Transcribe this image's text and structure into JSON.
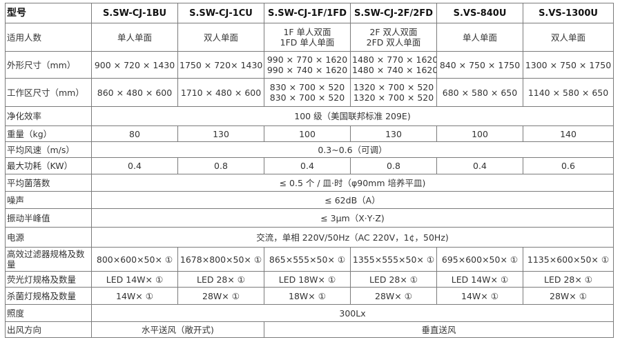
{
  "table": {
    "header": {
      "label": "型号",
      "models": [
        "S.SW-CJ-1BU",
        "S.SW-CJ-1CU",
        "S.SW-CJ-1F/1FD",
        "S.SW-CJ-2F/2FD",
        "S.VS-840U",
        "S.VS-1300U"
      ]
    },
    "rows": [
      {
        "label": "适用人数",
        "cells": [
          {
            "lines": [
              "单人单面"
            ]
          },
          {
            "lines": [
              "双人单面"
            ]
          },
          {
            "lines": [
              "1F 单人双面",
              "1FD 单人单面"
            ]
          },
          {
            "lines": [
              "2F 双人双面",
              "2FD 双人单面"
            ]
          },
          {
            "lines": [
              "单人单面"
            ]
          },
          {
            "lines": [
              "双人单面"
            ]
          }
        ]
      },
      {
        "label": "外形尺寸（mm）",
        "cells": [
          {
            "lines": [
              "900 × 720 × 1430"
            ]
          },
          {
            "lines": [
              "1750 × 720× 1430"
            ]
          },
          {
            "lines": [
              "990 × 770 × 1620",
              "990 × 740 × 1620"
            ]
          },
          {
            "lines": [
              "1480 × 770 × 1620",
              "1480 × 740 × 1620"
            ]
          },
          {
            "lines": [
              "840 × 750 × 1750"
            ]
          },
          {
            "lines": [
              "1300 × 750 × 1750"
            ]
          }
        ]
      },
      {
        "label": "工作区尺寸（mm）",
        "cells": [
          {
            "lines": [
              "860 × 480 × 600"
            ]
          },
          {
            "lines": [
              "1710 × 480 × 600"
            ]
          },
          {
            "lines": [
              "830 × 700 × 520",
              "830 × 700 × 520"
            ]
          },
          {
            "lines": [
              "1320 × 700 × 520",
              "1320 × 700 × 520"
            ]
          },
          {
            "lines": [
              "680 × 580 × 650"
            ]
          },
          {
            "lines": [
              "1140 × 580 × 650"
            ]
          }
        ]
      },
      {
        "label": "净化效率",
        "cells": [
          {
            "lines": [
              "100 级（美国联邦标准 209E)"
            ],
            "span": 6
          }
        ]
      },
      {
        "label": "重量（kg）",
        "cells": [
          {
            "lines": [
              "80"
            ]
          },
          {
            "lines": [
              "130"
            ]
          },
          {
            "lines": [
              "100"
            ]
          },
          {
            "lines": [
              "130"
            ]
          },
          {
            "lines": [
              "100"
            ]
          },
          {
            "lines": [
              "140"
            ]
          }
        ]
      },
      {
        "label": "平均风速（m/s）",
        "cells": [
          {
            "lines": [
              "0.3~0.6（可调）"
            ],
            "span": 6
          }
        ]
      },
      {
        "label": "最大功耗（KW）",
        "cells": [
          {
            "lines": [
              "0.4"
            ]
          },
          {
            "lines": [
              "0.8"
            ]
          },
          {
            "lines": [
              "0.4"
            ]
          },
          {
            "lines": [
              "0.8"
            ]
          },
          {
            "lines": [
              "0.4"
            ]
          },
          {
            "lines": [
              "0.6"
            ]
          }
        ]
      },
      {
        "label": "平均菌落数",
        "cells": [
          {
            "lines": [
              "≤ 0.5 个 / 皿·时（φ90mm 培养平皿)"
            ],
            "span": 6
          }
        ]
      },
      {
        "label": "噪声",
        "cells": [
          {
            "lines": [
              "≤ 62dB（A）"
            ],
            "span": 6
          }
        ]
      },
      {
        "label": "振动半峰值",
        "cells": [
          {
            "lines": [
              "≤ 3μm（X·Y·Z)"
            ],
            "span": 6
          }
        ]
      },
      {
        "label": "电源",
        "cells": [
          {
            "lines": [
              "交流，单相 220V/50Hz（AC 220V，1¢，50Hz)"
            ],
            "span": 6
          }
        ]
      },
      {
        "label": "高效过滤器规格及数量",
        "cells": [
          {
            "lines": [
              "800×600×50× ①"
            ]
          },
          {
            "lines": [
              "1678×800×50× ①"
            ]
          },
          {
            "lines": [
              "865×555×50× ①"
            ]
          },
          {
            "lines": [
              "1355×555×50× ①"
            ]
          },
          {
            "lines": [
              "695×600×50× ①"
            ]
          },
          {
            "lines": [
              "1135×600×50× ①"
            ]
          }
        ]
      },
      {
        "label": "荧光灯规格及数量",
        "cells": [
          {
            "lines": [
              "LED 14W× ①"
            ]
          },
          {
            "lines": [
              "LED 28× ①"
            ]
          },
          {
            "lines": [
              "LED 18W× ①"
            ]
          },
          {
            "lines": [
              "LED 28× ①"
            ]
          },
          {
            "lines": [
              "LED 14W× ①"
            ]
          },
          {
            "lines": [
              "LED 28× ①"
            ]
          }
        ]
      },
      {
        "label": "杀菌灯规格及数量",
        "cells": [
          {
            "lines": [
              "14W× ①"
            ]
          },
          {
            "lines": [
              "28W× ①"
            ]
          },
          {
            "lines": [
              "18W× ①"
            ]
          },
          {
            "lines": [
              "28W× ①"
            ]
          },
          {
            "lines": [
              "14W× ①"
            ]
          },
          {
            "lines": [
              "28W× ①"
            ]
          }
        ]
      },
      {
        "label": "照度",
        "cells": [
          {
            "lines": [
              "300Lx"
            ],
            "span": 6
          }
        ]
      },
      {
        "label": "出风方向",
        "cells": [
          {
            "lines": [
              "水平送风（敞开式)"
            ],
            "span": 2
          },
          {
            "lines": [
              "垂直送风"
            ],
            "span": 4
          }
        ]
      }
    ]
  }
}
